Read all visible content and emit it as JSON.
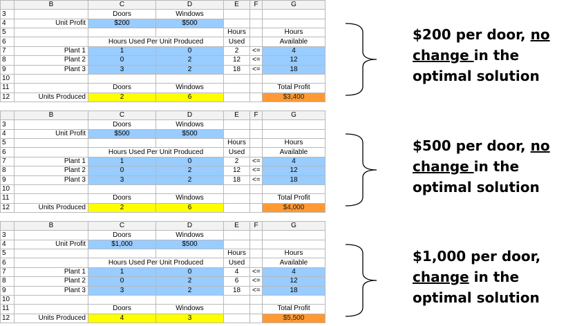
{
  "columns": [
    "B",
    "C",
    "D",
    "E",
    "F",
    "G"
  ],
  "row_numbers": [
    "3",
    "4",
    "5",
    "6",
    "7",
    "8",
    "9",
    "10",
    "11",
    "12"
  ],
  "panels": [
    {
      "doors_label": "Doors",
      "windows_label": "Windows",
      "unit_profit_label": "Unit Profit",
      "door_profit": "$200",
      "window_profit": "$500",
      "hours_label": "Hours",
      "used_label": "Used",
      "available_label": "Available",
      "hours_per_unit_label": "Hours Used Per Unit Produced",
      "plants": [
        {
          "name": "Plant 1",
          "doors": "1",
          "windows": "0",
          "used": "2",
          "op": "<=",
          "available": "4"
        },
        {
          "name": "Plant 2",
          "doors": "0",
          "windows": "2",
          "used": "12",
          "op": "<=",
          "available": "12"
        },
        {
          "name": "Plant 3",
          "doors": "3",
          "windows": "2",
          "used": "18",
          "op": "<=",
          "available": "18"
        }
      ],
      "total_profit_label": "Total Profit",
      "units_produced_label": "Units Produced",
      "units_doors": "2",
      "units_windows": "6",
      "total_profit": "$3,400",
      "note": {
        "p1": "$200 per door, ",
        "u1": "no",
        "u2": "change ",
        "p2": "in the",
        "p3": "optimal solution"
      }
    },
    {
      "doors_label": "Doors",
      "windows_label": "Windows",
      "unit_profit_label": "Unit Profit",
      "door_profit": "$500",
      "window_profit": "$500",
      "hours_label": "Hours",
      "used_label": "Used",
      "available_label": "Available",
      "hours_per_unit_label": "Hours Used Per Unit Produced",
      "plants": [
        {
          "name": "Plant 1",
          "doors": "1",
          "windows": "0",
          "used": "2",
          "op": "<=",
          "available": "4"
        },
        {
          "name": "Plant 2",
          "doors": "0",
          "windows": "2",
          "used": "12",
          "op": "<=",
          "available": "12"
        },
        {
          "name": "Plant 3",
          "doors": "3",
          "windows": "2",
          "used": "18",
          "op": "<=",
          "available": "18"
        }
      ],
      "total_profit_label": "Total Profit",
      "units_produced_label": "Units Produced",
      "units_doors": "2",
      "units_windows": "6",
      "total_profit": "$4,000",
      "note": {
        "p1": "$500 per door, ",
        "u1": "no",
        "u2": "change ",
        "p2": "in the",
        "p3": "optimal solution"
      }
    },
    {
      "doors_label": "Doors",
      "windows_label": "Windows",
      "unit_profit_label": "Unit Profit",
      "door_profit": "$1,000",
      "window_profit": "$500",
      "hours_label": "Hours",
      "used_label": "Used",
      "available_label": "Available",
      "hours_per_unit_label": "Hours Used Per Unit Produced",
      "plants": [
        {
          "name": "Plant 1",
          "doors": "1",
          "windows": "0",
          "used": "4",
          "op": "<=",
          "available": "4"
        },
        {
          "name": "Plant 2",
          "doors": "0",
          "windows": "2",
          "used": "6",
          "op": "<=",
          "available": "12"
        },
        {
          "name": "Plant 3",
          "doors": "3",
          "windows": "2",
          "used": "18",
          "op": "<=",
          "available": "18"
        }
      ],
      "total_profit_label": "Total Profit",
      "units_produced_label": "Units Produced",
      "units_doors": "4",
      "units_windows": "3",
      "total_profit": "$5,500",
      "note": {
        "p1": "$1,000 per door, ",
        "u1": "",
        "u2": "change",
        "p2": " in the",
        "p3": "optimal solution"
      }
    }
  ]
}
